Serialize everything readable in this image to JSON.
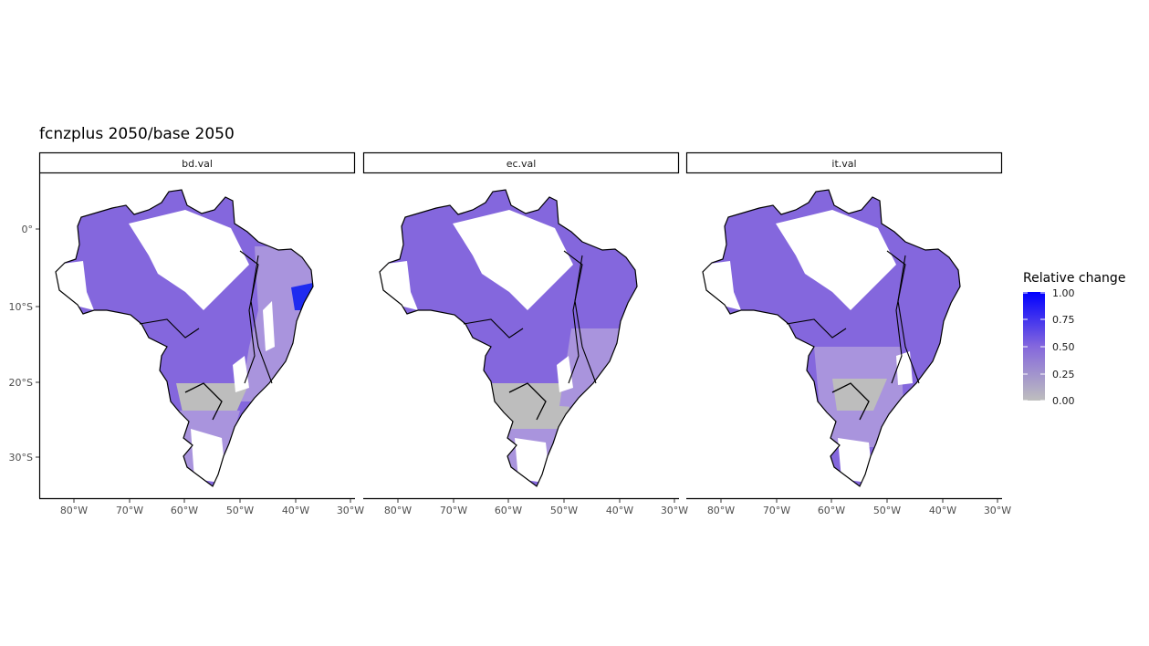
{
  "title": "fcnzplus 2050/base 2050",
  "panels": [
    {
      "label": "bd.val"
    },
    {
      "label": "ec.val"
    },
    {
      "label": "it.val"
    }
  ],
  "x_ticks": [
    "80°W",
    "70°W",
    "60°W",
    "50°W",
    "40°W",
    "30°W"
  ],
  "y_ticks": [
    "0°",
    "10°S",
    "20°S",
    "30°S"
  ],
  "legend": {
    "title": "Relative change",
    "labels": [
      "1.00",
      "0.75",
      "0.50",
      "0.25",
      "0.00"
    ],
    "colors": {
      "low": "#bebebe",
      "mid": "#8467dd",
      "high": "#0000ff"
    }
  },
  "map_colors": {
    "land": "#8467dd",
    "partial": "#a994dd",
    "low": "#bdbdbd",
    "nodata": "#ffffff"
  }
}
